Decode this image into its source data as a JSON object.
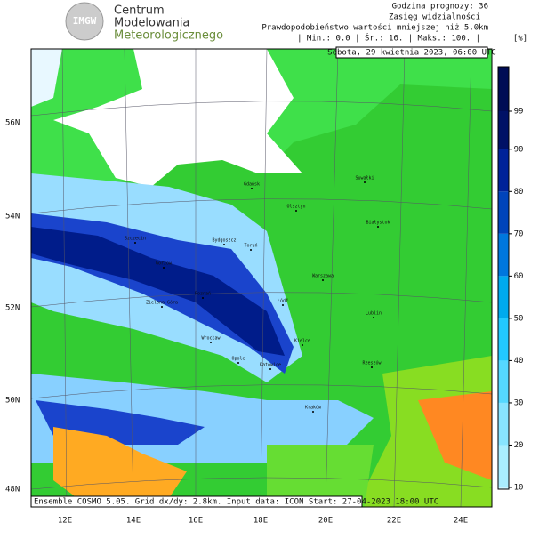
{
  "logo": {
    "mark": "IMGW",
    "lines": [
      "Centrum",
      "Modelowania",
      "Meteorologicznego"
    ]
  },
  "header": {
    "forecast_hour": "Godzina prognozy: 36",
    "parameter": "Zasięg widzialności",
    "description": "Prawdopodobieństwo wartości mniejszej niż 5.0km",
    "stats": "| Min.: 0.0 | Śr.: 16. | Maks.: 100. |",
    "unit": "[%]"
  },
  "valid_time": "Sobota, 29 kwietnia 2023, 06:00 UTC",
  "footer": "Ensemble COSMO 5.05. Grid dx/dy: 2.8km. Input data: ICON Start: 27-04-2023 18:00 UTC",
  "latitudes": [
    "56N",
    "54N",
    "52N",
    "50N",
    "48N"
  ],
  "longitudes": [
    "12E",
    "14E",
    "16E",
    "18E",
    "20E",
    "22E",
    "24E"
  ],
  "cities": [
    "Gdańsk",
    "Suwałki",
    "Olsztyn",
    "Szczecin",
    "Białystok",
    "Bydgoszcz",
    "Toruń",
    "Gorzów",
    "Warszawa",
    "Poznań",
    "Zielona Góra",
    "Łódź",
    "Lublin",
    "Wrocław",
    "Opole",
    "Kielce",
    "Katowice",
    "Rzeszów",
    "Kraków"
  ],
  "legend": {
    "ticks": [
      10,
      20,
      30,
      40,
      50,
      60,
      70,
      80,
      90,
      99
    ]
  }
}
